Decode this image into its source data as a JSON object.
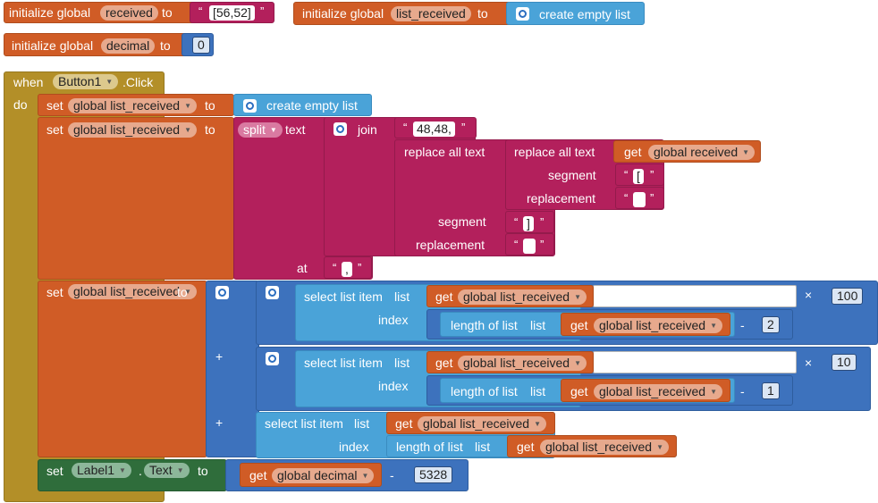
{
  "colors": {
    "variables": "#d05c26",
    "text": "#b3205c",
    "math": "#3d72bd",
    "lists": "#4aa3d8",
    "control": "#b38f28",
    "component": "#2f6d3b"
  },
  "init_blocks": [
    {
      "prefix": "initialize global",
      "var": "received",
      "to": "to",
      "value": "[56,52]"
    },
    {
      "prefix": "initialize global",
      "var": "list_received",
      "to": "to",
      "value": "create empty list"
    },
    {
      "prefix": "initialize global",
      "var": "decimal",
      "to": "to",
      "value": "0"
    }
  ],
  "event": {
    "when": "when",
    "component": "Button1",
    "event": ".Click",
    "do": "do"
  },
  "set1": {
    "set": "set",
    "var": "global list_received",
    "to": "to",
    "value": "create empty list"
  },
  "set2": {
    "set": "set",
    "var": "global list_received",
    "to": "to",
    "split": "split",
    "text": "text",
    "join": "join",
    "join_first": "48,48,",
    "replace_outer": "replace all text",
    "replace_inner": "replace all text",
    "get": "get",
    "get_var": "global received",
    "segment": "segment",
    "seg_inner": "[",
    "replacement": "replacement",
    "rep_inner": "",
    "seg_outer": "]",
    "rep_outer": "",
    "at": "at",
    "at_value": ","
  },
  "set3": {
    "set": "set",
    "var": "global list_received",
    "to": "to",
    "select": "select list item",
    "list": "list",
    "index": "index",
    "get": "get",
    "length": "length of list",
    "plus": "+",
    "minus": "-",
    "times": "×",
    "term1_mult": "100",
    "term1_minus": "2",
    "term2_mult": "10",
    "term2_minus": "1"
  },
  "set4": {
    "set": "set",
    "component": "Label1",
    "dot": ".",
    "prop": "Text",
    "to": "to",
    "get": "get",
    "var": "global decimal",
    "minus": "-",
    "value": "5328"
  }
}
